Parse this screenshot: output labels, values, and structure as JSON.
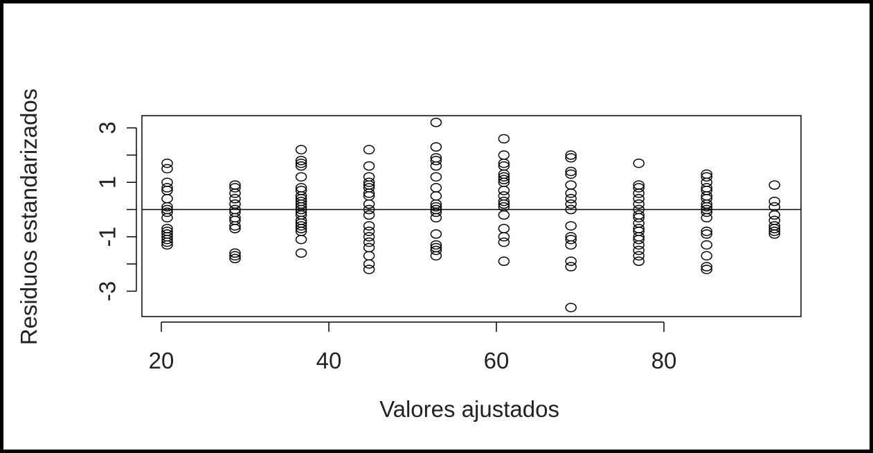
{
  "chart_data": {
    "type": "scatter",
    "title": "",
    "xlabel": "Valores ajustados",
    "ylabel": "Residuos estandarizados",
    "xlim": [
      20.5,
      93.3
    ],
    "ylim": [
      -3.7,
      3.5
    ],
    "x_ticks": [
      "20",
      "40",
      "60",
      "80"
    ],
    "x_tick_values": [
      20,
      40,
      60,
      80
    ],
    "y_ticks": [
      "3",
      "1",
      "-1",
      "-3"
    ],
    "y_tick_values": [
      3,
      2,
      1,
      0,
      -1,
      -2,
      -3
    ],
    "reference_line_y": 0,
    "grid": false,
    "marker": "open-circle",
    "colors": {
      "points": "#000000",
      "axes": "#000000",
      "text": "#222222"
    },
    "groups": [
      {
        "x": 20.7,
        "y": [
          1.7,
          1.5,
          1.0,
          0.8,
          0.7,
          0.4,
          0.1,
          0.0,
          -0.1,
          -0.3,
          -0.7,
          -0.8,
          -0.9,
          -1.0,
          -1.1,
          -1.2,
          -1.3
        ]
      },
      {
        "x": 28.8,
        "y": [
          0.9,
          0.8,
          0.6,
          0.4,
          0.2,
          0.0,
          -0.1,
          -0.3,
          -0.4,
          -0.6,
          -0.7,
          -1.6,
          -1.7,
          -1.8
        ]
      },
      {
        "x": 36.7,
        "y": [
          2.2,
          1.8,
          1.7,
          1.6,
          1.2,
          0.8,
          0.7,
          0.5,
          0.4,
          0.3,
          0.2,
          0.1,
          0.0,
          -0.1,
          -0.2,
          -0.4,
          -0.5,
          -0.6,
          -0.7,
          -0.8,
          -1.1,
          -1.6
        ]
      },
      {
        "x": 44.8,
        "y": [
          2.2,
          1.6,
          1.2,
          1.0,
          0.9,
          0.8,
          0.6,
          0.5,
          0.2,
          0.0,
          -0.2,
          -0.6,
          -0.8,
          -1.0,
          -1.2,
          -1.4,
          -1.7,
          -2.0,
          -2.2
        ]
      },
      {
        "x": 52.8,
        "y": [
          3.2,
          2.3,
          1.9,
          1.8,
          1.6,
          1.2,
          0.8,
          0.5,
          0.2,
          0.1,
          0.0,
          -0.1,
          -0.3,
          -0.9,
          -1.3,
          -1.4,
          -1.5,
          -1.7
        ]
      },
      {
        "x": 60.9,
        "y": [
          2.6,
          2.0,
          1.7,
          1.6,
          1.3,
          1.2,
          1.1,
          1.0,
          0.7,
          0.5,
          0.3,
          0.2,
          0.1,
          -0.2,
          -0.7,
          -1.0,
          -1.2,
          -1.9
        ]
      },
      {
        "x": 68.9,
        "y": [
          2.0,
          1.9,
          1.4,
          1.3,
          0.9,
          0.6,
          0.4,
          0.2,
          0.0,
          -0.6,
          -1.0,
          -1.1,
          -1.3,
          -1.9,
          -2.1,
          -3.6
        ]
      },
      {
        "x": 77.0,
        "y": [
          1.7,
          0.9,
          0.8,
          0.6,
          0.4,
          0.2,
          0.0,
          -0.2,
          -0.3,
          -0.5,
          -0.7,
          -0.8,
          -1.0,
          -1.1,
          -1.3,
          -1.5,
          -1.7,
          -1.9
        ]
      },
      {
        "x": 85.1,
        "y": [
          1.3,
          1.2,
          1.0,
          0.8,
          0.7,
          0.5,
          0.4,
          0.2,
          0.1,
          0.0,
          -0.1,
          -0.3,
          -0.8,
          -0.9,
          -1.3,
          -1.7,
          -2.1,
          -2.2
        ]
      },
      {
        "x": 93.2,
        "y": [
          0.9,
          0.3,
          0.1,
          -0.2,
          -0.4,
          -0.6,
          -0.7,
          -0.8,
          -0.9
        ]
      }
    ]
  }
}
